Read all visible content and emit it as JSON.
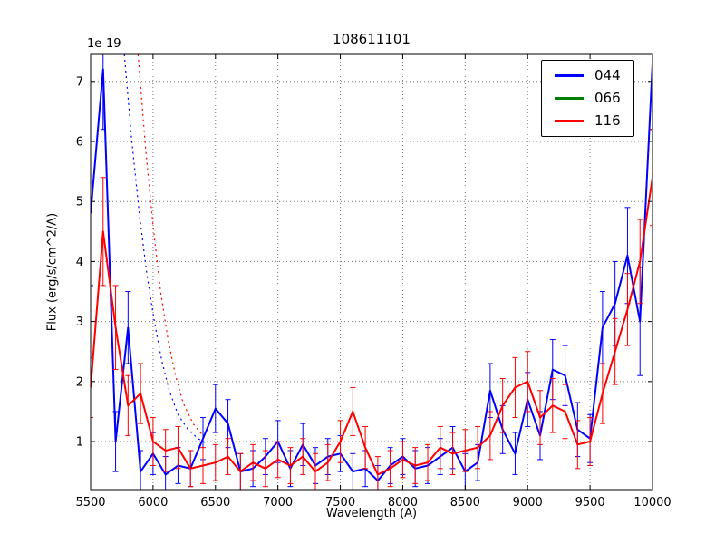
{
  "figure": {
    "title": "108611101",
    "xlabel": "Wavelength (A)",
    "ylabel": "Flux (erg/s/cm^2/A)",
    "offset_text": "1e-19",
    "background": "#ffffff"
  },
  "chart_data": {
    "type": "line",
    "title": "108611101",
    "xlabel": "Wavelength (A)",
    "ylabel": "Flux (erg/s/cm^2/A)",
    "y_scale_factor": "1e-19",
    "xlim": [
      5500,
      10000
    ],
    "ylim": [
      0.2,
      7.45
    ],
    "xticks": [
      5500,
      6000,
      6500,
      7000,
      7500,
      8000,
      8500,
      9000,
      9500,
      10000
    ],
    "yticks": [
      1,
      2,
      3,
      4,
      5,
      6,
      7
    ],
    "grid": true,
    "legend_position": "upper right",
    "x": [
      5500,
      5600,
      5700,
      5800,
      5900,
      6000,
      6100,
      6200,
      6300,
      6400,
      6500,
      6600,
      6700,
      6800,
      6900,
      7000,
      7100,
      7200,
      7300,
      7400,
      7500,
      7600,
      7700,
      7800,
      7900,
      8000,
      8100,
      8200,
      8300,
      8400,
      8500,
      8600,
      8700,
      8800,
      8900,
      9000,
      9100,
      9200,
      9300,
      9400,
      9500,
      9600,
      9700,
      9800,
      9900,
      10000
    ],
    "series": [
      {
        "name": "044",
        "color": "#0000ff",
        "style": "solid",
        "values": [
          4.8,
          7.2,
          1.0,
          2.9,
          0.5,
          0.8,
          0.45,
          0.6,
          0.55,
          1.05,
          1.55,
          1.3,
          0.5,
          0.55,
          0.75,
          1.0,
          0.55,
          0.95,
          0.6,
          0.75,
          0.8,
          0.5,
          0.55,
          0.35,
          0.6,
          0.75,
          0.55,
          0.6,
          0.75,
          0.9,
          0.5,
          0.65,
          1.85,
          1.2,
          0.8,
          1.7,
          1.1,
          2.2,
          2.1,
          1.2,
          1.05,
          2.9,
          3.3,
          4.1,
          3.0,
          7.3
        ],
        "errors": [
          1.2,
          1.0,
          0.5,
          0.6,
          0.35,
          0.35,
          0.3,
          0.3,
          0.3,
          0.35,
          0.4,
          0.4,
          0.3,
          0.3,
          0.3,
          0.35,
          0.3,
          0.35,
          0.3,
          0.3,
          0.3,
          0.3,
          0.3,
          0.25,
          0.3,
          0.3,
          0.3,
          0.3,
          0.3,
          0.35,
          0.3,
          0.3,
          0.45,
          0.4,
          0.35,
          0.45,
          0.4,
          0.5,
          0.5,
          0.45,
          0.4,
          0.6,
          0.7,
          0.8,
          0.9,
          1.1
        ]
      },
      {
        "name": "066",
        "color": "#008000",
        "style": "solid",
        "values": [],
        "errors": []
      },
      {
        "name": "116",
        "color": "#ff0000",
        "style": "solid",
        "values": [
          1.9,
          4.5,
          2.9,
          1.6,
          1.8,
          1.0,
          0.85,
          0.9,
          0.55,
          0.6,
          0.65,
          0.75,
          0.5,
          0.65,
          0.55,
          0.7,
          0.6,
          0.75,
          0.5,
          0.65,
          1.0,
          1.5,
          0.9,
          0.45,
          0.55,
          0.7,
          0.6,
          0.65,
          0.9,
          0.8,
          0.85,
          0.9,
          1.1,
          1.6,
          1.9,
          2.0,
          1.4,
          1.6,
          1.5,
          0.95,
          1.0,
          1.8,
          2.5,
          3.2,
          4.0,
          5.4
        ],
        "errors": [
          0.5,
          0.9,
          0.7,
          0.5,
          0.5,
          0.4,
          0.35,
          0.35,
          0.3,
          0.3,
          0.3,
          0.3,
          0.3,
          0.3,
          0.3,
          0.3,
          0.3,
          0.3,
          0.3,
          0.3,
          0.35,
          0.4,
          0.35,
          0.3,
          0.3,
          0.3,
          0.3,
          0.3,
          0.35,
          0.35,
          0.35,
          0.35,
          0.4,
          0.45,
          0.5,
          0.5,
          0.45,
          0.45,
          0.45,
          0.4,
          0.4,
          0.5,
          0.55,
          0.6,
          0.7,
          0.8
        ]
      },
      {
        "name": "044-dotted",
        "color": "#0000ff",
        "style": "dotted",
        "x": [
          5770,
          5830,
          5890,
          5950,
          6010,
          6070,
          6130,
          6200,
          6280,
          6360,
          6440
        ],
        "values": [
          7.45,
          6.0,
          4.8,
          3.8,
          3.0,
          2.35,
          1.85,
          1.45,
          1.2,
          1.05,
          0.95
        ]
      },
      {
        "name": "116-dotted",
        "color": "#ff0000",
        "style": "dotted",
        "x": [
          5880,
          5940,
          6000,
          6060,
          6120,
          6180,
          6240,
          6320,
          6400
        ],
        "values": [
          7.45,
          5.9,
          4.6,
          3.5,
          2.7,
          2.1,
          1.65,
          1.3,
          1.1
        ]
      }
    ],
    "legend": [
      {
        "label": "044",
        "color": "#0000ff"
      },
      {
        "label": "066",
        "color": "#008000"
      },
      {
        "label": "116",
        "color": "#ff0000"
      }
    ]
  }
}
